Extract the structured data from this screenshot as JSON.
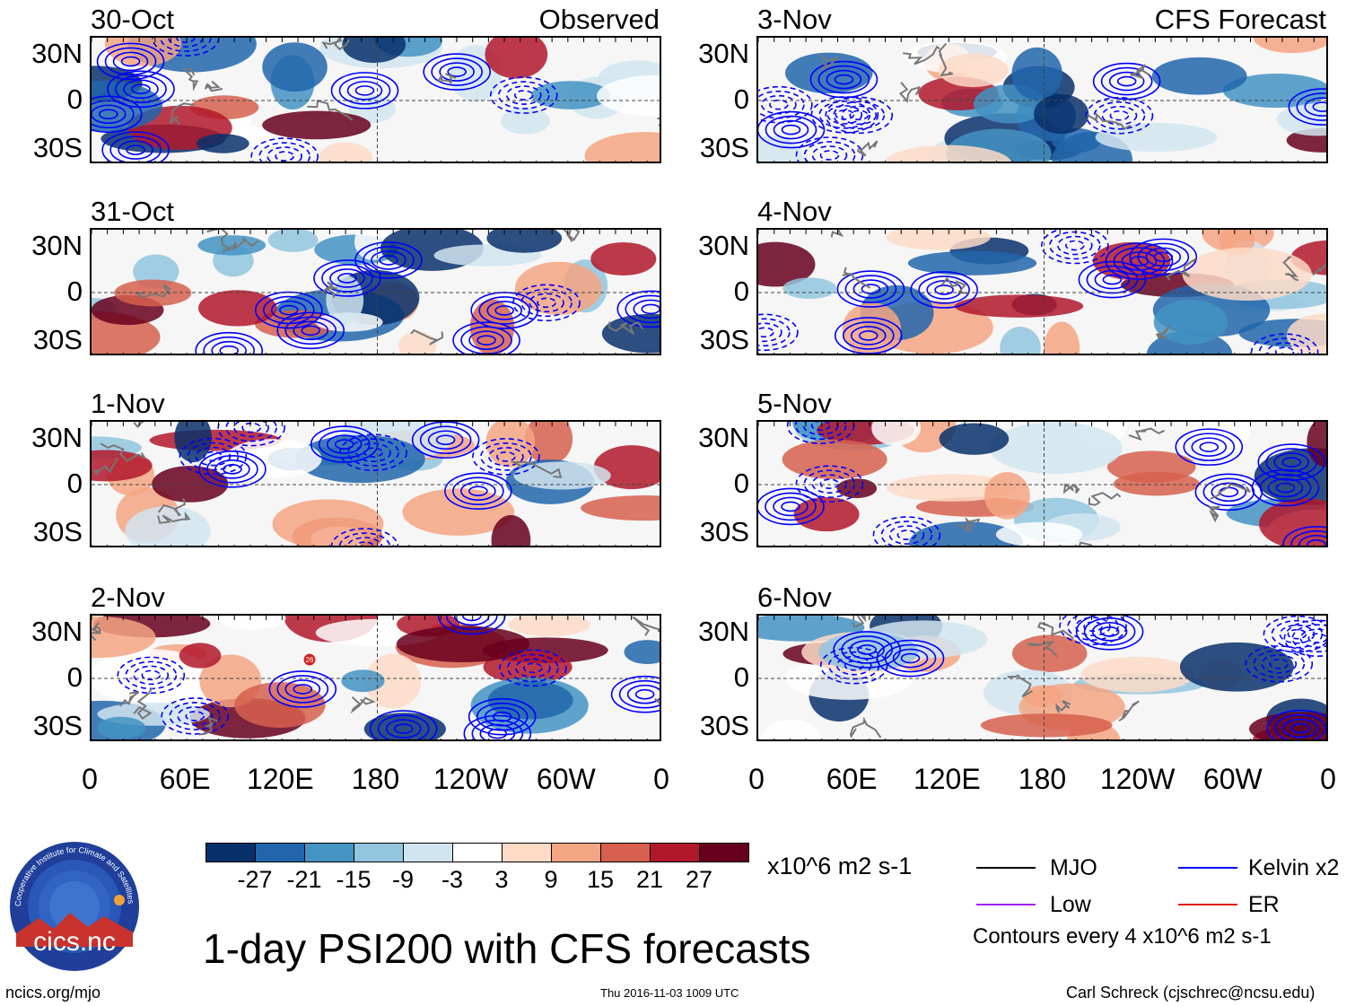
{
  "panels": [
    {
      "date": "30-Oct",
      "heading": "Observed",
      "col": 0,
      "row": 0
    },
    {
      "date": "31-Oct",
      "heading": "",
      "col": 0,
      "row": 1
    },
    {
      "date": "1-Nov",
      "heading": "",
      "col": 0,
      "row": 2
    },
    {
      "date": "2-Nov",
      "heading": "",
      "col": 0,
      "row": 3
    },
    {
      "date": "3-Nov",
      "heading": "CFS Forecast",
      "col": 1,
      "row": 0
    },
    {
      "date": "4-Nov",
      "heading": "",
      "col": 1,
      "row": 1
    },
    {
      "date": "5-Nov",
      "heading": "",
      "col": 1,
      "row": 2
    },
    {
      "date": "6-Nov",
      "heading": "",
      "col": 1,
      "row": 3
    }
  ],
  "lat_ticks": [
    "30N",
    "0",
    "30S"
  ],
  "lon_ticks": [
    "0",
    "60E",
    "120E",
    "180",
    "120W",
    "60W",
    "0"
  ],
  "colorbar": {
    "levels": [
      "-27",
      "-21",
      "-15",
      "-9",
      "-3",
      "3",
      "9",
      "15",
      "21",
      "27"
    ],
    "colors": [
      "#08306b",
      "#2166ac",
      "#4393c3",
      "#92c5de",
      "#d1e5f0",
      "#ffffff",
      "#fddbc7",
      "#f4a582",
      "#d6604d",
      "#b2182b",
      "#67001f"
    ],
    "units": "x10^6 m2 s-1"
  },
  "legend": {
    "items": [
      {
        "label": "MJO",
        "color": "#000000"
      },
      {
        "label": "Kelvin x2",
        "color": "#0000ff"
      },
      {
        "label": "Low",
        "color": "#a020f0"
      },
      {
        "label": "ER",
        "color": "#e31a1c"
      }
    ],
    "note": "Contours every 4 x10^6 m2 s-1"
  },
  "title": "1-day PSI200 with CFS forecasts",
  "logo_text": "cics.nc",
  "logo_ring_text": "Cooperative Institute for Climate and Satellites",
  "footer": {
    "left": "ncics.org/mjo",
    "center": "Thu 2016-11-03 1009 UTC",
    "right": "Carl Schreck (cjschrec@ncsu.edu)"
  },
  "marker": {
    "label": "26",
    "panel": 3
  }
}
